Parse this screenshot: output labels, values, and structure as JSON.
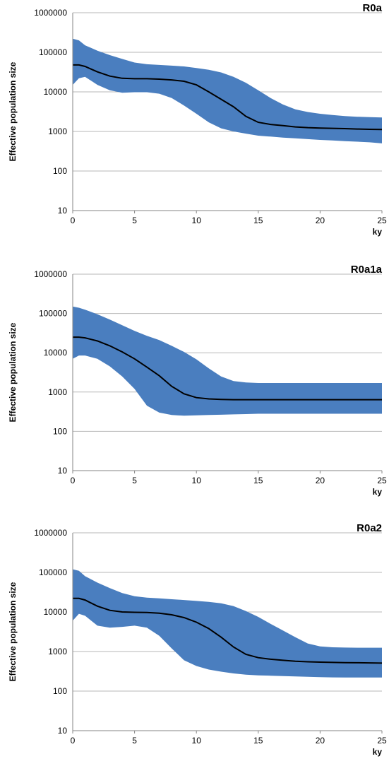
{
  "chart_data": [
    {
      "type": "area",
      "title": "R0a",
      "xlabel": "ky",
      "ylabel": "Effective population size",
      "xlim": [
        0,
        25
      ],
      "ylim": [
        10,
        1000000
      ],
      "y_scale": "log",
      "x_ticks": [
        0,
        5,
        10,
        15,
        20,
        25
      ],
      "y_ticks": [
        "10",
        "100",
        "1000",
        "10000",
        "100000",
        "1000000"
      ],
      "grid": true,
      "band_color": "#4a7ebf",
      "line_color": "#000000",
      "x": [
        0,
        0.5,
        1,
        2,
        3,
        4,
        5,
        6,
        7,
        8,
        9,
        10,
        11,
        12,
        13,
        14,
        15,
        16,
        17,
        18,
        19,
        20,
        21,
        22,
        23,
        24,
        25
      ],
      "median": [
        48000,
        48000,
        44000,
        32000,
        25000,
        22000,
        21500,
        21500,
        21000,
        20000,
        18500,
        15000,
        10000,
        6500,
        4200,
        2400,
        1700,
        1500,
        1400,
        1300,
        1250,
        1220,
        1200,
        1180,
        1150,
        1130,
        1120
      ],
      "upper": [
        220000,
        200000,
        150000,
        110000,
        85000,
        68000,
        55000,
        50000,
        48000,
        46000,
        44000,
        40000,
        36000,
        31000,
        24000,
        17000,
        11000,
        7000,
        4800,
        3600,
        3100,
        2800,
        2600,
        2450,
        2350,
        2300,
        2250
      ],
      "lower": [
        15000,
        22000,
        24000,
        15000,
        11000,
        9500,
        9800,
        9800,
        9000,
        7000,
        4500,
        2800,
        1700,
        1200,
        1000,
        880,
        780,
        740,
        700,
        670,
        640,
        610,
        590,
        570,
        550,
        530,
        500
      ]
    },
    {
      "type": "area",
      "title": "R0a1a",
      "xlabel": "ky",
      "ylabel": "Effective population size",
      "xlim": [
        0,
        25
      ],
      "ylim": [
        10,
        1000000
      ],
      "y_scale": "log",
      "x_ticks": [
        0,
        5,
        10,
        15,
        20,
        25
      ],
      "y_ticks": [
        "10",
        "100",
        "1000",
        "10000",
        "100000",
        "1000000"
      ],
      "grid": true,
      "band_color": "#4a7ebf",
      "line_color": "#000000",
      "x": [
        0,
        0.5,
        1,
        2,
        3,
        4,
        5,
        6,
        7,
        8,
        9,
        10,
        11,
        12,
        13,
        14,
        15,
        16,
        17,
        18,
        19,
        20,
        21,
        22,
        23,
        24,
        25
      ],
      "median": [
        25000,
        25000,
        24000,
        20000,
        15000,
        10500,
        7000,
        4300,
        2600,
        1400,
        900,
        720,
        670,
        650,
        640,
        640,
        640,
        640,
        640,
        640,
        640,
        640,
        640,
        640,
        640,
        640,
        640
      ],
      "upper": [
        150000,
        140000,
        125000,
        95000,
        70000,
        50000,
        36000,
        27000,
        21000,
        15000,
        10500,
        6800,
        4000,
        2500,
        1900,
        1750,
        1700,
        1700,
        1700,
        1700,
        1700,
        1700,
        1700,
        1700,
        1700,
        1700,
        1700
      ],
      "lower": [
        7000,
        8500,
        8500,
        7000,
        4500,
        2500,
        1200,
        450,
        300,
        260,
        250,
        255,
        260,
        265,
        270,
        275,
        280,
        280,
        280,
        280,
        280,
        280,
        280,
        280,
        280,
        280,
        280
      ]
    },
    {
      "type": "area",
      "title": "R0a2",
      "xlabel": "ky",
      "ylabel": "Effective population size",
      "xlim": [
        0,
        25
      ],
      "ylim": [
        10,
        1000000
      ],
      "y_scale": "log",
      "x_ticks": [
        0,
        5,
        10,
        15,
        20,
        25
      ],
      "y_ticks": [
        "10",
        "100",
        "1000",
        "10000",
        "100000",
        "1000000"
      ],
      "grid": true,
      "band_color": "#4a7ebf",
      "line_color": "#000000",
      "x": [
        0,
        0.5,
        1,
        2,
        3,
        4,
        5,
        6,
        7,
        8,
        9,
        10,
        11,
        12,
        13,
        14,
        15,
        16,
        17,
        18,
        19,
        20,
        21,
        22,
        23,
        24,
        25
      ],
      "median": [
        22000,
        22000,
        20000,
        14000,
        11000,
        10000,
        9800,
        9700,
        9300,
        8500,
        7200,
        5500,
        3800,
        2300,
        1300,
        850,
        700,
        640,
        600,
        570,
        550,
        540,
        530,
        525,
        520,
        515,
        510
      ],
      "upper": [
        120000,
        110000,
        80000,
        55000,
        40000,
        30000,
        25000,
        23000,
        22000,
        21000,
        20000,
        19000,
        18000,
        16500,
        14000,
        10500,
        7500,
        5000,
        3400,
        2300,
        1600,
        1350,
        1280,
        1260,
        1250,
        1250,
        1250
      ],
      "lower": [
        6000,
        9000,
        8000,
        4500,
        4000,
        4200,
        4500,
        4000,
        2500,
        1200,
        600,
        430,
        350,
        310,
        280,
        260,
        250,
        245,
        240,
        235,
        230,
        225,
        222,
        220,
        220,
        220,
        220
      ]
    }
  ]
}
